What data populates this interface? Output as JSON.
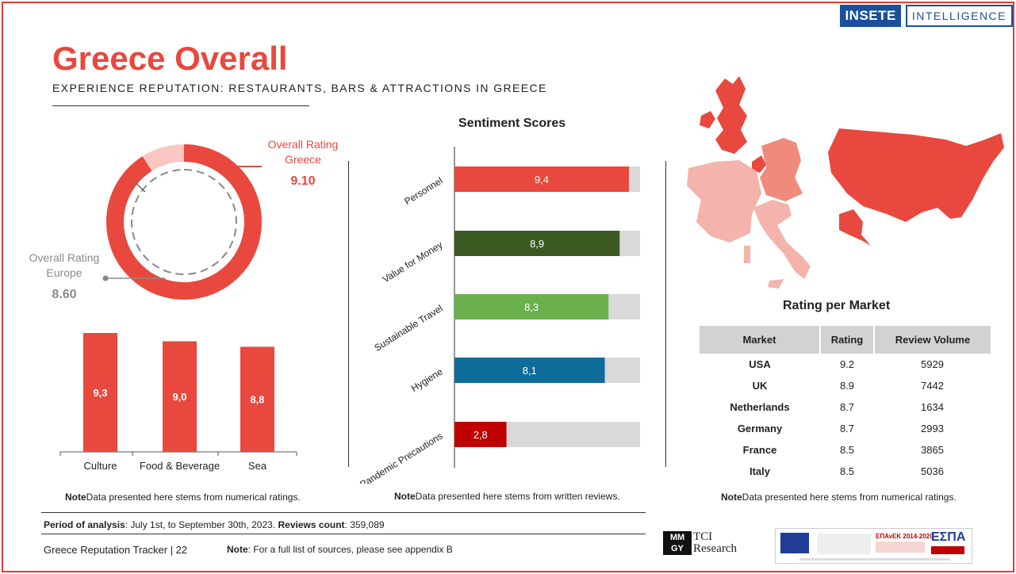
{
  "header": {
    "logo_left": "INSETE",
    "logo_right": "INTELLIGENCE",
    "title": "Greece Overall",
    "subtitle": "EXPERIENCE REPUTATION: RESTAURANTS, BARS & ATTRACTIONS IN GREECE"
  },
  "donut": {
    "greece_label_line1": "Overall Rating",
    "greece_label_line2": "Greece",
    "greece_value": "9.10",
    "europe_label_line1": "Overall Rating",
    "europe_label_line2": "Europe",
    "europe_value": "8.60",
    "greece_fraction": 0.91,
    "europe_fraction": 0.86,
    "colors": {
      "greece": "#e8483d",
      "remainder": "#f8c7c2",
      "europe": "#888888"
    }
  },
  "chart_data": [
    {
      "type": "bar",
      "categories": [
        "Culture",
        "Food & Beverage",
        "Sea"
      ],
      "values": [
        9.3,
        9.0,
        8.8
      ],
      "value_labels": [
        "9,3",
        "9,0",
        "8,8"
      ],
      "color": "#e8483d"
    },
    {
      "type": "bar",
      "orientation": "horizontal",
      "title": "Sentiment Scores",
      "categories": [
        "Personnel",
        "Value for Money",
        "Sustainable Travel",
        "Hygiene",
        "Pandemic Precautions"
      ],
      "values": [
        9.4,
        8.9,
        8.3,
        8.1,
        2.8
      ],
      "value_labels": [
        "9,4",
        "8,9",
        "8,3",
        "8,1",
        "2,8"
      ],
      "xlim": [
        0,
        10
      ],
      "colors": [
        "#e8483d",
        "#3a5a22",
        "#6ab04c",
        "#0e6d98",
        "#c00000"
      ],
      "track_color": "#d9d9d9"
    }
  ],
  "notes": {
    "left": "Data presented here stems from numerical ratings.",
    "middle": "Data presented here stems from written reviews.",
    "right": "Data presented here stems from  numerical ratings.",
    "note_bold": "Note"
  },
  "market": {
    "title": "Rating per Market",
    "headers": [
      "Market",
      "Rating",
      "Review Volume"
    ],
    "rows": [
      [
        "USA",
        "9.2",
        "5929"
      ],
      [
        "UK",
        "8.9",
        "7442"
      ],
      [
        "Netherlands",
        "8.7",
        "1634"
      ],
      [
        "Germany",
        "8.7",
        "2993"
      ],
      [
        "France",
        "8.5",
        "3865"
      ],
      [
        "Italy",
        "8.5",
        "5036"
      ]
    ]
  },
  "footer": {
    "period_label": "Period of analysis",
    "period_value": ": July 1st, to September 30th, 2023.",
    "reviews_label": "Reviews count",
    "reviews_value": ": 359,089",
    "tracker": "Greece Reputation Tracker |  22",
    "sources_label": "Note",
    "sources_value": ": For a full list of sources, please see appendix B",
    "mmgy_line1": "MM",
    "mmgy_line2": "GY",
    "tci_line1": "TCI",
    "tci_line2": "Research",
    "espa_text": "ΕΠΑνΕΚ 2014-2020",
    "espa_brand": "ΕΣΠΑ"
  }
}
